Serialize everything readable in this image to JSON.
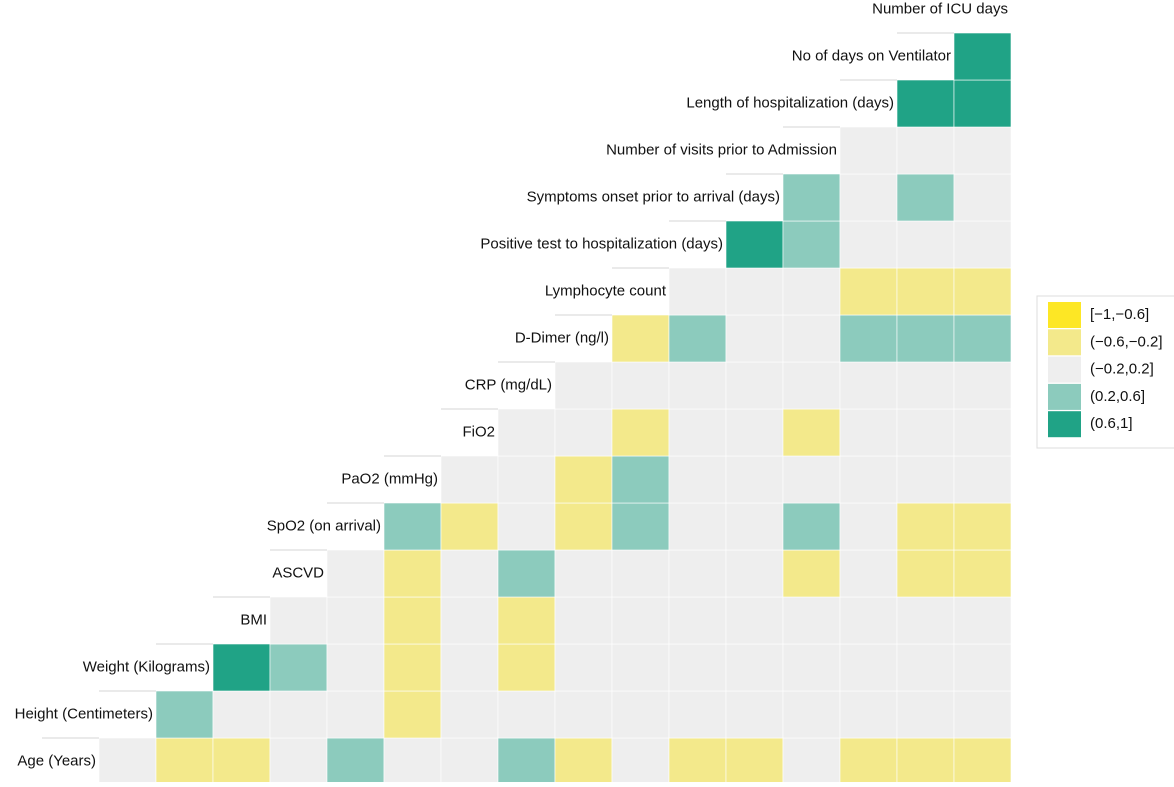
{
  "chart_data": {
    "type": "heatmap",
    "variables": [
      "Age (Years)",
      "Height (Centimeters)",
      "Weight (Kilograms)",
      "BMI",
      "ASCVD",
      "SpO2 (on arrival)",
      "PaO2 (mmHg)",
      "FiO2",
      "CRP (mg/dL)",
      "D-Dimer (ng/l)",
      "Lymphocyte count",
      "Positive test to hospitalization (days)",
      "Symptoms onset prior to arrival (days)",
      "Number of visits prior to Admission",
      "Length of hospitalization (days)",
      "No of days on Ventilator",
      "Number of ICU days"
    ],
    "legend": [
      {
        "label": "[−1,−0.6]",
        "color": "#fde725"
      },
      {
        "label": "(−0.6,−0.2]",
        "color": "#f3e98b"
      },
      {
        "label": "(−0.2,0.2]",
        "color": "#eeeeee"
      },
      {
        "label": "(0.2,0.6]",
        "color": "#8ccbbd"
      },
      {
        "label": "(0.6,1]",
        "color": "#20a386"
      }
    ],
    "cells": [
      [
        2,
        1,
        1,
        2,
        3,
        2,
        2,
        3,
        1,
        2,
        1,
        1,
        2,
        1,
        1,
        1
      ],
      [
        3,
        2,
        2,
        2,
        1,
        2,
        2,
        2,
        2,
        2,
        2,
        2,
        2,
        2,
        2
      ],
      [
        4,
        3,
        2,
        1,
        2,
        1,
        2,
        2,
        2,
        2,
        2,
        2,
        2,
        2
      ],
      [
        2,
        2,
        1,
        2,
        1,
        2,
        2,
        2,
        2,
        2,
        2,
        2,
        2
      ],
      [
        2,
        1,
        2,
        3,
        2,
        2,
        2,
        2,
        1,
        2,
        1,
        1
      ],
      [
        3,
        1,
        2,
        1,
        3,
        2,
        2,
        3,
        2,
        1,
        1
      ],
      [
        2,
        2,
        1,
        3,
        2,
        2,
        2,
        2,
        2,
        2
      ],
      [
        2,
        2,
        1,
        2,
        2,
        1,
        2,
        2,
        2
      ],
      [
        2,
        2,
        2,
        2,
        2,
        2,
        2,
        2
      ],
      [
        1,
        3,
        2,
        2,
        3,
        3,
        3
      ],
      [
        2,
        2,
        2,
        1,
        1,
        1
      ],
      [
        4,
        3,
        2,
        2,
        2
      ],
      [
        3,
        2,
        3,
        2
      ],
      [
        2,
        2,
        2
      ],
      [
        4,
        4
      ],
      [
        4
      ]
    ]
  }
}
